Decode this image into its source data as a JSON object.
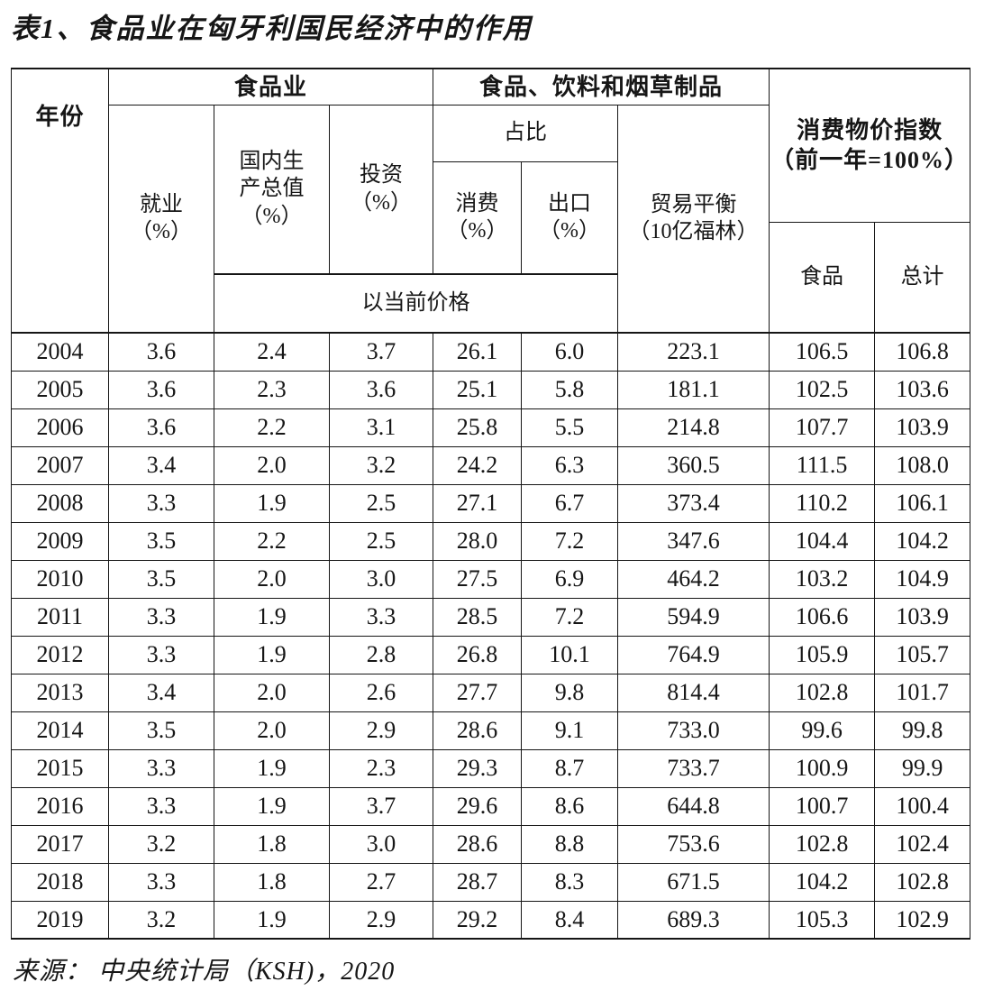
{
  "page": {
    "title": "表1、食品业在匈牙利国民经济中的作用",
    "source": "来源： 中央统计局（KSH)，2020"
  },
  "table": {
    "header": {
      "year": "年份",
      "food_industry": "食品业",
      "food_beverage_tobacco": "食品、饮料和烟草制品",
      "cpi": "消费物价指数\n（前一年=100%）",
      "employment": "就业\n（%）",
      "gdp": "国内生\n产总值\n（%）",
      "investment": "投资\n（%）",
      "share": "占比",
      "consumption": "消费\n（%）",
      "exports": "出口\n（%）",
      "trade_balance": "贸易平衡\n（10亿福林）",
      "at_current_prices": "以当前价格",
      "food": "食品",
      "total": "总计"
    },
    "rows": [
      [
        "2004",
        "3.6",
        "2.4",
        "3.7",
        "26.1",
        "6.0",
        "223.1",
        "106.5",
        "106.8"
      ],
      [
        "2005",
        "3.6",
        "2.3",
        "3.6",
        "25.1",
        "5.8",
        "181.1",
        "102.5",
        "103.6"
      ],
      [
        "2006",
        "3.6",
        "2.2",
        "3.1",
        "25.8",
        "5.5",
        "214.8",
        "107.7",
        "103.9"
      ],
      [
        "2007",
        "3.4",
        "2.0",
        "3.2",
        "24.2",
        "6.3",
        "360.5",
        "111.5",
        "108.0"
      ],
      [
        "2008",
        "3.3",
        "1.9",
        "2.5",
        "27.1",
        "6.7",
        "373.4",
        "110.2",
        "106.1"
      ],
      [
        "2009",
        "3.5",
        "2.2",
        "2.5",
        "28.0",
        "7.2",
        "347.6",
        "104.4",
        "104.2"
      ],
      [
        "2010",
        "3.5",
        "2.0",
        "3.0",
        "27.5",
        "6.9",
        "464.2",
        "103.2",
        "104.9"
      ],
      [
        "2011",
        "3.3",
        "1.9",
        "3.3",
        "28.5",
        "7.2",
        "594.9",
        "106.6",
        "103.9"
      ],
      [
        "2012",
        "3.3",
        "1.9",
        "2.8",
        "26.8",
        "10.1",
        "764.9",
        "105.9",
        "105.7"
      ],
      [
        "2013",
        "3.4",
        "2.0",
        "2.6",
        "27.7",
        "9.8",
        "814.4",
        "102.8",
        "101.7"
      ],
      [
        "2014",
        "3.5",
        "2.0",
        "2.9",
        "28.6",
        "9.1",
        "733.0",
        "99.6",
        "99.8"
      ],
      [
        "2015",
        "3.3",
        "1.9",
        "2.3",
        "29.3",
        "8.7",
        "733.7",
        "100.9",
        "99.9"
      ],
      [
        "2016",
        "3.3",
        "1.9",
        "3.7",
        "29.6",
        "8.6",
        "644.8",
        "100.7",
        "100.4"
      ],
      [
        "2017",
        "3.2",
        "1.8",
        "3.0",
        "28.6",
        "8.8",
        "753.6",
        "102.8",
        "102.4"
      ],
      [
        "2018",
        "3.3",
        "1.8",
        "2.7",
        "28.7",
        "8.3",
        "671.5",
        "104.2",
        "102.8"
      ],
      [
        "2019",
        "3.2",
        "1.9",
        "2.9",
        "29.2",
        "8.4",
        "689.3",
        "105.3",
        "102.9"
      ]
    ]
  }
}
